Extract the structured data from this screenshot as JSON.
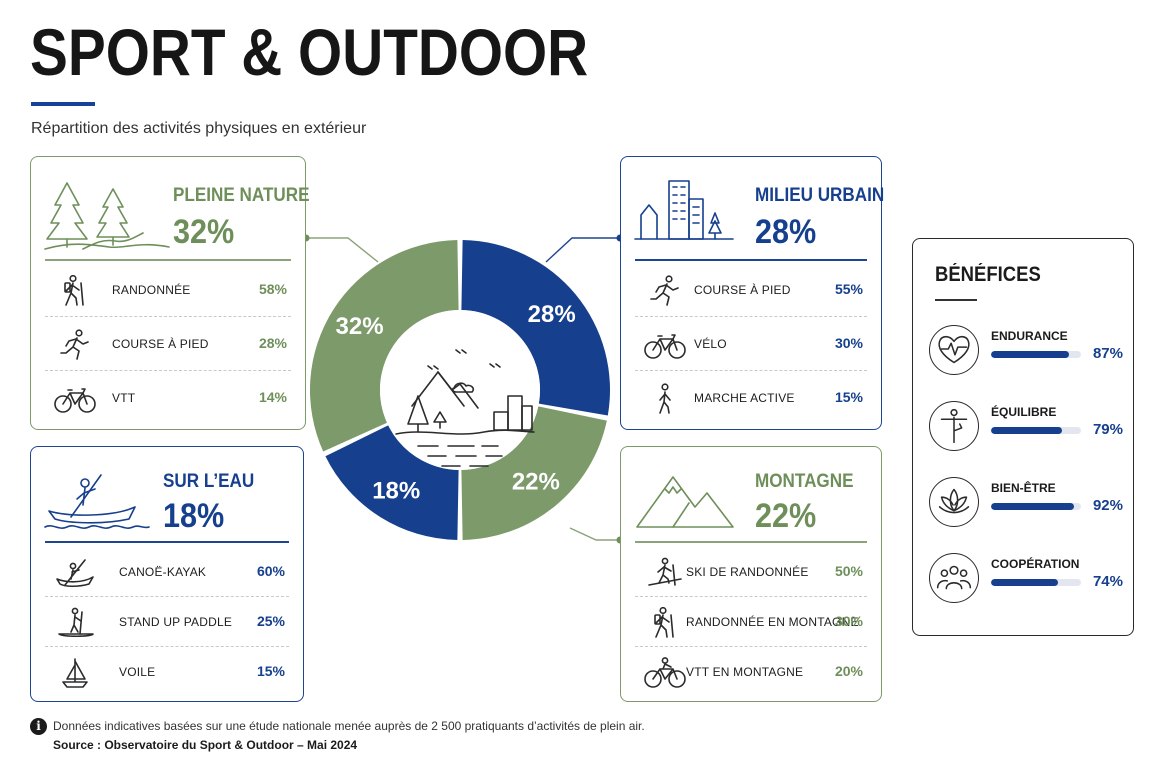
{
  "header": {
    "title": "SPORT & OUTDOOR",
    "subtitle": "Répartition des activités physiques en extérieur"
  },
  "chart_data": {
    "type": "pie",
    "variant": "donut",
    "title": "SPORT & OUTDOOR",
    "subtitle": "Répartition des activités physiques en extérieur",
    "categories": [
      "Milieu urbain",
      "Montagne",
      "Sur l'eau",
      "Pleine nature"
    ],
    "values": [
      28,
      22,
      18,
      32
    ],
    "labels": [
      "28%",
      "22%",
      "18%",
      "32%"
    ],
    "colors": [
      "#163f8e",
      "#7d9a6a",
      "#163f8e",
      "#7d9a6a"
    ],
    "start_angle_deg": 0,
    "direction": "clockwise"
  },
  "cards": {
    "nature": {
      "title": "PLEINE NATURE",
      "pct": "32%",
      "rows": [
        {
          "label": "RANDONNÉE",
          "value": "58%",
          "icon": "hiker-icon"
        },
        {
          "label": "COURSE À PIED",
          "value": "28%",
          "icon": "runner-icon"
        },
        {
          "label": "VTT",
          "value": "14%",
          "icon": "bicycle-icon"
        }
      ]
    },
    "urbain": {
      "title": "MILIEU URBAIN",
      "pct": "28%",
      "rows": [
        {
          "label": "COURSE À PIED",
          "value": "55%",
          "icon": "runner-icon"
        },
        {
          "label": "VÉLO",
          "value": "30%",
          "icon": "bicycle-icon"
        },
        {
          "label": "MARCHE ACTIVE",
          "value": "15%",
          "icon": "walker-icon"
        }
      ]
    },
    "eau": {
      "title": "SUR L’EAU",
      "pct": "18%",
      "rows": [
        {
          "label": "CANOË-KAYAK",
          "value": "60%",
          "icon": "kayak-icon"
        },
        {
          "label": "STAND UP PADDLE",
          "value": "25%",
          "icon": "paddle-icon"
        },
        {
          "label": "VOILE",
          "value": "15%",
          "icon": "sailboat-icon"
        }
      ]
    },
    "montagne": {
      "title": "MONTAGNE",
      "pct": "22%",
      "rows": [
        {
          "label": "SKI DE RANDONNÉE",
          "value": "50%",
          "icon": "ski-icon"
        },
        {
          "label": "RANDONNÉE EN MONTAGNE",
          "value": "30%",
          "icon": "hiker-icon"
        },
        {
          "label": "VTT EN MONTAGNE",
          "value": "20%",
          "icon": "mountain-bike-icon"
        }
      ]
    }
  },
  "benefits": {
    "title": "BÉNÉFICES",
    "items": [
      {
        "label": "ENDURANCE",
        "value": "87%",
        "level": 0.87,
        "icon": "heart-pulse-icon"
      },
      {
        "label": "ÉQUILIBRE",
        "value": "79%",
        "level": 0.79,
        "icon": "balance-pose-icon"
      },
      {
        "label": "BIEN-ÊTRE",
        "value": "92%",
        "level": 0.92,
        "icon": "lotus-icon"
      },
      {
        "label": "COOPÉRATION",
        "value": "74%",
        "level": 0.74,
        "icon": "team-icon"
      }
    ]
  },
  "footer": {
    "note": "Données indicatives basées sur une étude nationale menée auprès de 2 500 pratiquants d’activités de plein air.",
    "source": "Source : Observatoire du Sport & Outdoor – Mai 2024",
    "info_glyph": "i"
  }
}
